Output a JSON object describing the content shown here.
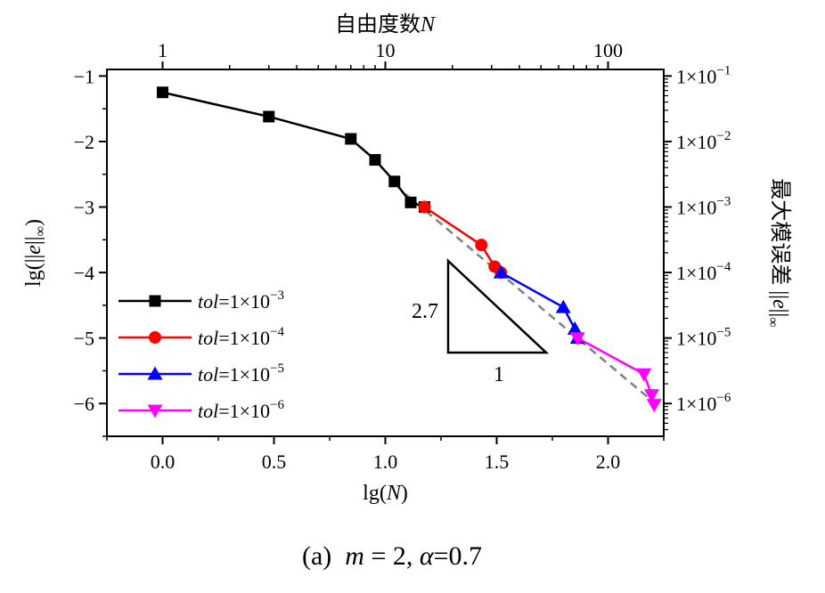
{
  "chart_data": {
    "type": "line",
    "caption": "(a)  m = 2, α=0.7",
    "caption_parts": {
      "prefix": "(a)",
      "m_var": "m",
      "m_rest": " = 2, ",
      "alpha_var": "α",
      "alpha_rest": "=0.7"
    },
    "xlabel": "lg(N)",
    "xlabel_parts": {
      "pre": "lg(",
      "var": "N",
      "post": ")"
    },
    "ylabel": "lg(||e||∞)",
    "ylabel_parts": {
      "pre": "lg(||",
      "var": "e",
      "post": "||",
      "sub": "∞",
      "close": ")"
    },
    "top_xlabel": "自由度数N",
    "top_xlabel_parts": {
      "pre": "自由度数",
      "var": "N"
    },
    "right_ylabel": "最大模误差 ||e||∞",
    "right_ylabel_parts": {
      "pre": "最大模误差 ||",
      "var": "e",
      "post": "||",
      "sub": "∞"
    },
    "xlim": [
      -0.25,
      2.25
    ],
    "ylim": [
      -6.5,
      -0.9
    ],
    "xticks": [
      0.0,
      0.5,
      1.0,
      1.5,
      2.0
    ],
    "xtick_labels": [
      "0.0",
      "0.5",
      "1.0",
      "1.5",
      "2.0"
    ],
    "yticks": [
      -1,
      -2,
      -3,
      -4,
      -5,
      -6
    ],
    "ytick_labels": [
      "−1",
      "−2",
      "−3",
      "−4",
      "−5",
      "−6"
    ],
    "top_ticks": [
      {
        "label": "1",
        "value": 1
      },
      {
        "label": "10",
        "value": 10
      },
      {
        "label": "100",
        "value": 100
      }
    ],
    "right_ticks": [
      {
        "base": "1×10",
        "exp": "−1",
        "value": -1
      },
      {
        "base": "1×10",
        "exp": "−2",
        "value": -2
      },
      {
        "base": "1×10",
        "exp": "−3",
        "value": -3
      },
      {
        "base": "1×10",
        "exp": "−4",
        "value": -4
      },
      {
        "base": "1×10",
        "exp": "−5",
        "value": -5
      },
      {
        "base": "1×10",
        "exp": "−6",
        "value": -6
      }
    ],
    "series": [
      {
        "name": "tol=1×10−3",
        "name_var": "tol",
        "name_rest": "=1×10",
        "name_exp": "−3",
        "color": "#000000",
        "marker": "square",
        "x": [
          0.0,
          0.477,
          0.845,
          0.954,
          1.041,
          1.114,
          1.176
        ],
        "y": [
          -1.25,
          -1.62,
          -1.96,
          -2.28,
          -2.61,
          -2.93,
          -3.0
        ]
      },
      {
        "name": "tol=1×10−4",
        "name_var": "tol",
        "name_rest": "=1×10",
        "name_exp": "−4",
        "color": "#ff0000",
        "marker": "circle",
        "x": [
          1.176,
          1.431,
          1.491,
          1.519
        ],
        "y": [
          -3.0,
          -3.58,
          -3.91,
          -4.0
        ]
      },
      {
        "name": "tol=1×10−5",
        "name_var": "tol",
        "name_rest": "=1×10",
        "name_exp": "−5",
        "color": "#0000ff",
        "marker": "triangle-up",
        "x": [
          1.519,
          1.799,
          1.851,
          1.863
        ],
        "y": [
          -4.0,
          -4.53,
          -4.86,
          -5.0
        ]
      },
      {
        "name": "tol=1×10−6",
        "name_var": "tol",
        "name_rest": "=1×10",
        "name_exp": "−6",
        "color": "#ff00ff",
        "marker": "triangle-down",
        "x": [
          1.863,
          2.161,
          2.196,
          2.207
        ],
        "y": [
          -5.0,
          -5.55,
          -5.87,
          -6.02
        ]
      }
    ],
    "reference_line": {
      "style": "dashed",
      "color": "#808080",
      "x": [
        1.09,
        2.23
      ],
      "y": [
        -2.8,
        -6.05
      ]
    },
    "slope_triangle": {
      "slope_label": "2.7",
      "run_label": "1"
    },
    "legend_position": "lower-left"
  }
}
